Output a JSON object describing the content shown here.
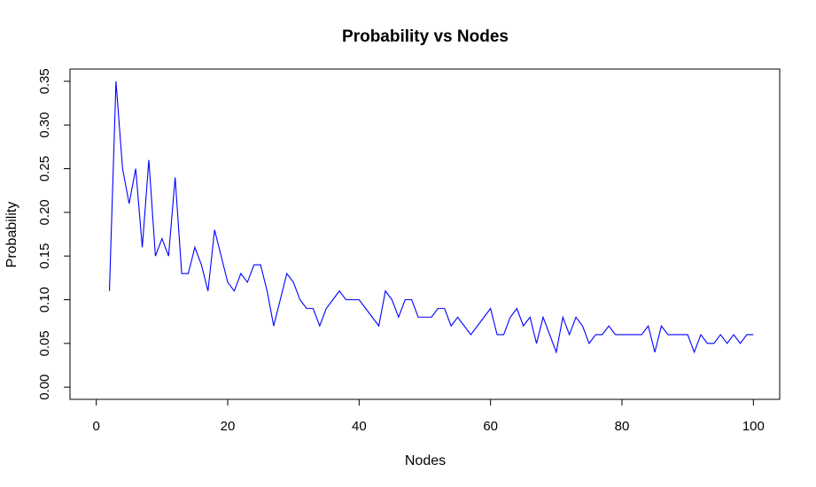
{
  "chart_data": {
    "type": "line",
    "title": "Probability vs Nodes",
    "xlabel": "Nodes",
    "ylabel": "Probability",
    "xlim": [
      -4,
      104
    ],
    "ylim": [
      -0.014,
      0.364
    ],
    "x_ticks": [
      0,
      20,
      40,
      60,
      80,
      100
    ],
    "y_ticks": [
      0.0,
      0.05,
      0.1,
      0.15,
      0.2,
      0.25,
      0.3,
      0.35
    ],
    "x_tick_labels": [
      "0",
      "20",
      "40",
      "60",
      "80",
      "100"
    ],
    "y_tick_labels": [
      "0.00",
      "0.05",
      "0.10",
      "0.15",
      "0.20",
      "0.25",
      "0.30",
      "0.35"
    ],
    "grid": false,
    "legend": "none",
    "color": "#0000ff",
    "series": [
      {
        "x": [
          2,
          3,
          4,
          5,
          6,
          7,
          8,
          9,
          10,
          11,
          12,
          13,
          14,
          15,
          16,
          17,
          18,
          19,
          20,
          21,
          22,
          23,
          24,
          25,
          26,
          27,
          28,
          29,
          30,
          31,
          32,
          33,
          34,
          35,
          36,
          37,
          38,
          39,
          40,
          41,
          42,
          43,
          44,
          45,
          46,
          47,
          48,
          49,
          50,
          51,
          52,
          53,
          54,
          55,
          56,
          57,
          58,
          59,
          60,
          61,
          62,
          63,
          64,
          65,
          66,
          67,
          68,
          69,
          70,
          71,
          72,
          73,
          74,
          75,
          76,
          77,
          78,
          79,
          80,
          81,
          82,
          83,
          84,
          85,
          86,
          87,
          88,
          89,
          90,
          91,
          92,
          93,
          94,
          95,
          96,
          97,
          98,
          99,
          100
        ],
        "values": [
          0.11,
          0.35,
          0.25,
          0.21,
          0.25,
          0.16,
          0.26,
          0.15,
          0.17,
          0.15,
          0.24,
          0.13,
          0.13,
          0.16,
          0.14,
          0.11,
          0.18,
          0.15,
          0.12,
          0.11,
          0.13,
          0.12,
          0.14,
          0.14,
          0.11,
          0.07,
          0.1,
          0.13,
          0.12,
          0.1,
          0.09,
          0.09,
          0.07,
          0.09,
          0.1,
          0.11,
          0.1,
          0.1,
          0.1,
          0.09,
          0.08,
          0.07,
          0.11,
          0.1,
          0.08,
          0.1,
          0.1,
          0.08,
          0.08,
          0.08,
          0.09,
          0.09,
          0.07,
          0.08,
          0.07,
          0.06,
          0.07,
          0.08,
          0.09,
          0.06,
          0.06,
          0.08,
          0.09,
          0.07,
          0.08,
          0.05,
          0.08,
          0.06,
          0.04,
          0.08,
          0.06,
          0.08,
          0.07,
          0.05,
          0.06,
          0.06,
          0.07,
          0.06,
          0.06,
          0.06,
          0.06,
          0.06,
          0.07,
          0.04,
          0.07,
          0.06,
          0.06,
          0.06,
          0.06,
          0.04,
          0.06,
          0.05,
          0.05,
          0.06,
          0.05,
          0.06,
          0.05,
          0.06,
          0.06
        ]
      }
    ]
  }
}
